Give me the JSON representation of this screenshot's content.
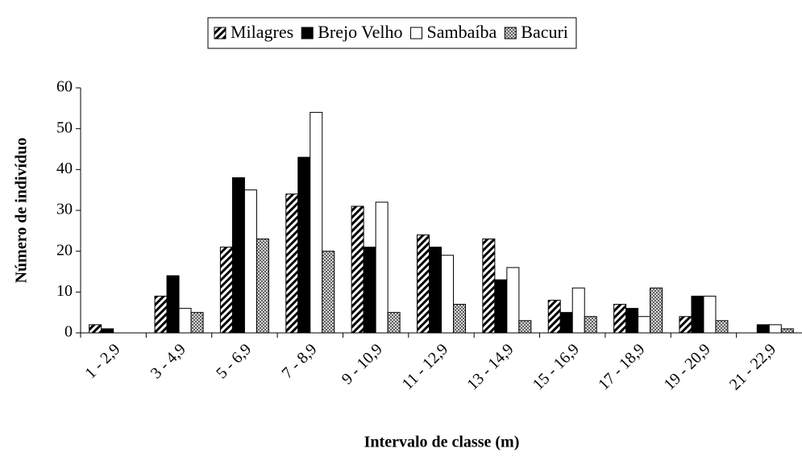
{
  "chart_data": {
    "type": "bar",
    "xlabel": "Intervalo de classe (m)",
    "ylabel": "Número de indivíduo",
    "categories": [
      "1 - 2,9",
      "3 - 4,9",
      "5 - 6,9",
      "7 - 8,9",
      "9 - 10,9",
      "11 - 12,9",
      "13 - 14,9",
      "15 - 16,9",
      "17 - 18,9",
      "19 - 20,9",
      "21 - 22,9"
    ],
    "series": [
      {
        "name": "Milagres",
        "color": "#000000",
        "pattern": "hatch",
        "values": [
          2,
          9,
          21,
          34,
          31,
          24,
          23,
          8,
          7,
          4,
          0
        ]
      },
      {
        "name": "Brejo Velho",
        "color": "#000000",
        "pattern": "solid",
        "values": [
          1,
          14,
          38,
          43,
          21,
          21,
          13,
          5,
          6,
          9,
          2
        ]
      },
      {
        "name": "Sambaíba",
        "color": "#ffffff",
        "pattern": "solid",
        "values": [
          0,
          6,
          35,
          54,
          32,
          19,
          16,
          11,
          4,
          9,
          2
        ]
      },
      {
        "name": "Bacuri",
        "color": "#a0a0a0",
        "pattern": "dots",
        "values": [
          0,
          5,
          23,
          20,
          5,
          7,
          3,
          4,
          11,
          3,
          1
        ]
      }
    ],
    "ylim": [
      0,
      60
    ],
    "yticks": [
      0,
      10,
      20,
      30,
      40,
      50,
      60
    ],
    "legend": "top"
  }
}
